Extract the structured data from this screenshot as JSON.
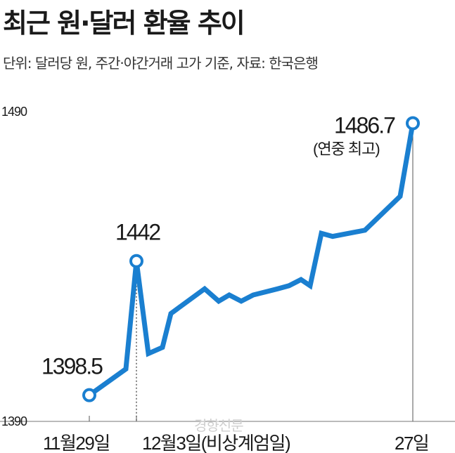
{
  "title": "최근 원·달러 환율 추이",
  "subtitle": "단위: 달러당 원, 주간·야간거래 고가 기준, 자료: 한국은행",
  "watermark": "경향신문",
  "chart_data": {
    "type": "line",
    "title": "최근 원·달러 환율 추이",
    "subtitle": "단위: 달러당 원, 주간·야간거래 고가 기준, 자료: 한국은행",
    "ylim": [
      1390,
      1490
    ],
    "yticks": [
      1390,
      1490
    ],
    "x_labels": [
      {
        "index": 0,
        "text": "11월29일"
      },
      {
        "index": 2,
        "text": "12월3일(비상계엄일)"
      },
      {
        "index": 19,
        "text": "27일"
      }
    ],
    "series": [
      {
        "values": [
          1398.5,
          1407,
          1442,
          1412,
          1414,
          1425,
          1433,
          1429,
          1431,
          1429,
          1431,
          1433,
          1434,
          1436,
          1434,
          1451,
          1450,
          1452,
          1463,
          1486.7
        ],
        "color": "#1a7fd0"
      }
    ],
    "annotations": [
      {
        "index": 0,
        "text": "1398.5"
      },
      {
        "index": 2,
        "text": "1442"
      },
      {
        "index": 19,
        "text": "1486.7",
        "note": "(연중 최고)"
      }
    ]
  }
}
